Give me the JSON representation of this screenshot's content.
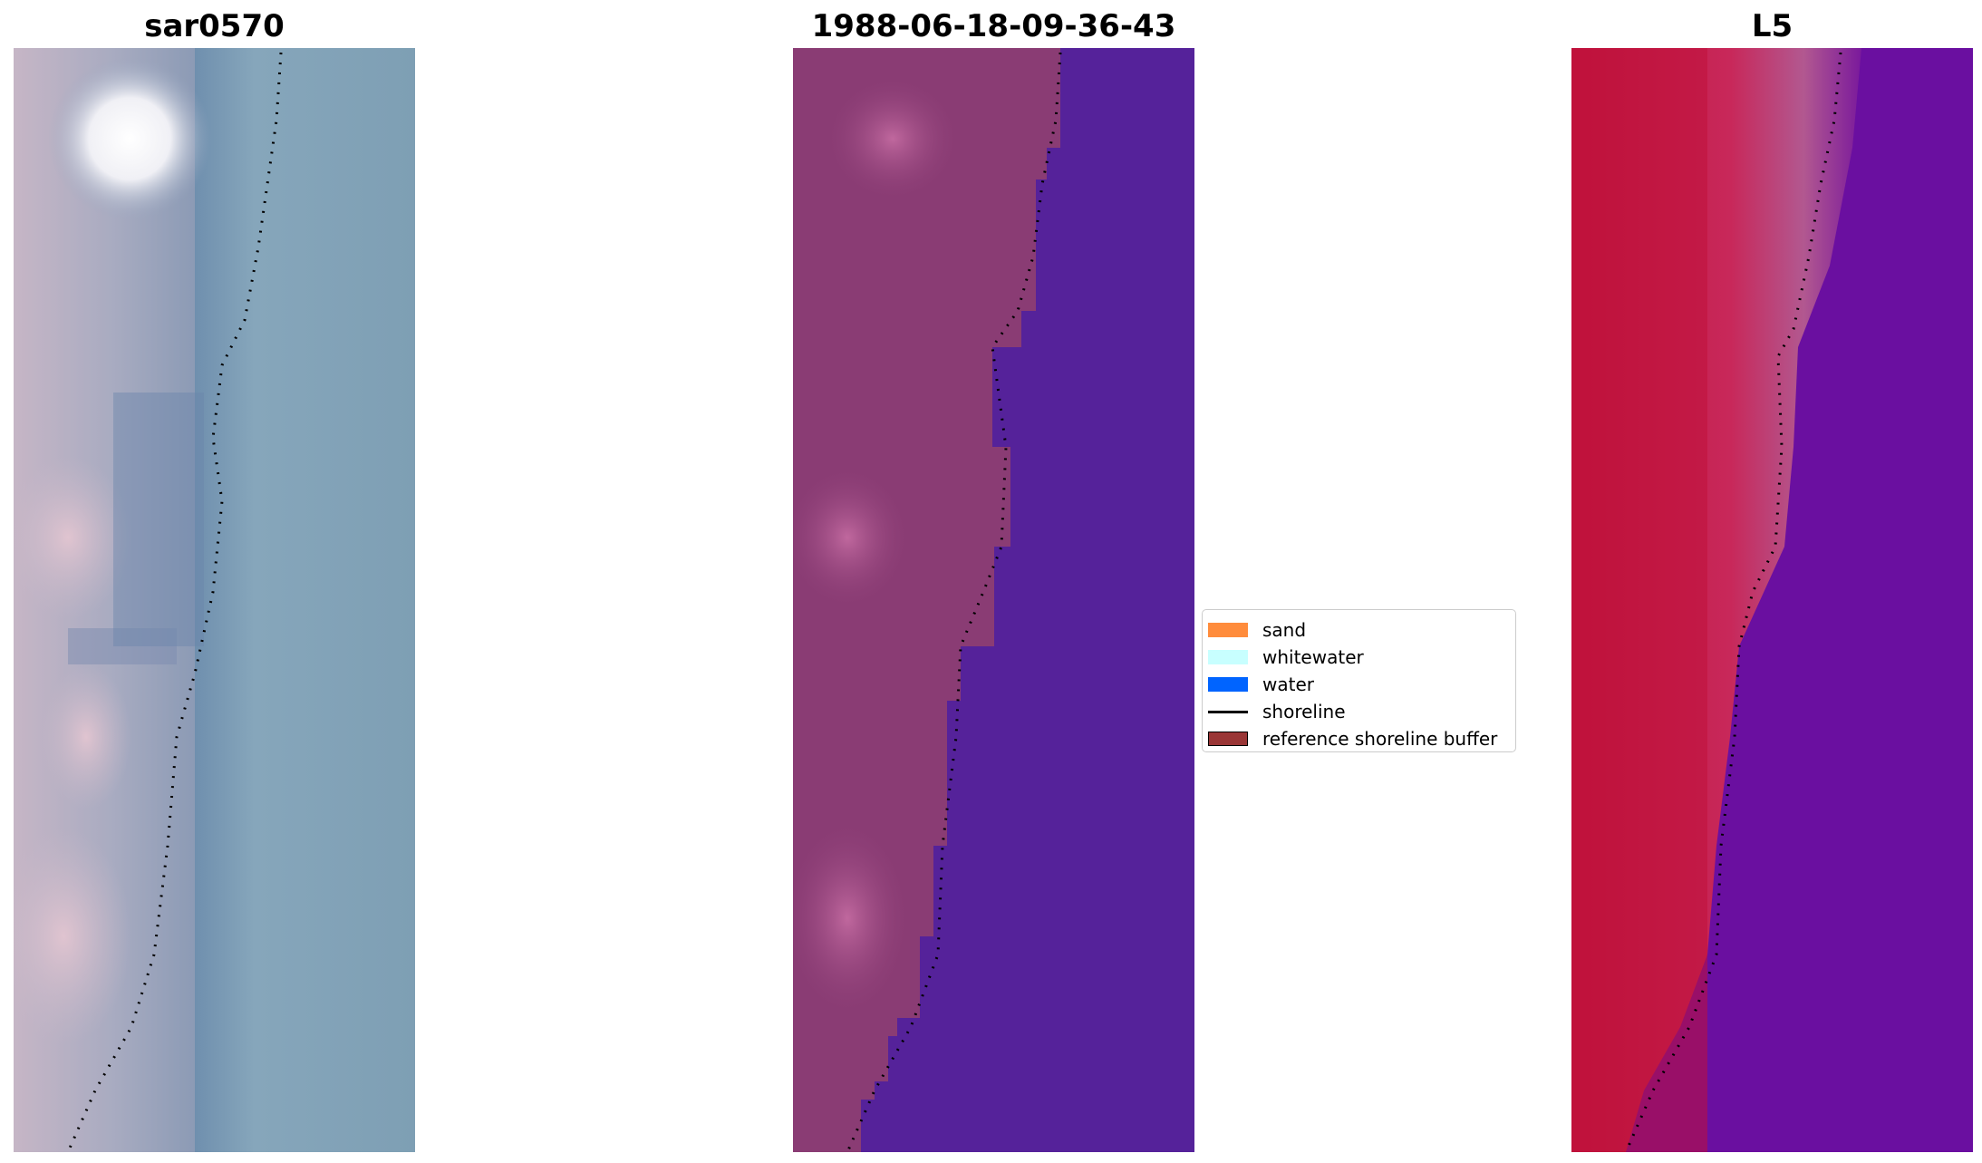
{
  "panels": [
    {
      "title": "sar0570"
    },
    {
      "title": "1988-06-18-09-36-43"
    },
    {
      "title": "L5"
    }
  ],
  "legend": {
    "items": [
      {
        "label": "sand",
        "color": "#ff8c3c"
      },
      {
        "label": "whitewater",
        "color": "#c8ffff"
      },
      {
        "label": "water",
        "color": "#0064ff"
      },
      {
        "label": "shoreline",
        "color": "#000000"
      },
      {
        "label": "reference shoreline buffer",
        "color": "#9a3636"
      }
    ]
  },
  "colors": {
    "rgb_water": "#7f9fb5",
    "classified_water": "#55229a",
    "classified_land": "#8a3c74",
    "mndwi_land": "#c0143c",
    "mndwi_water": "#6a0fa0"
  }
}
